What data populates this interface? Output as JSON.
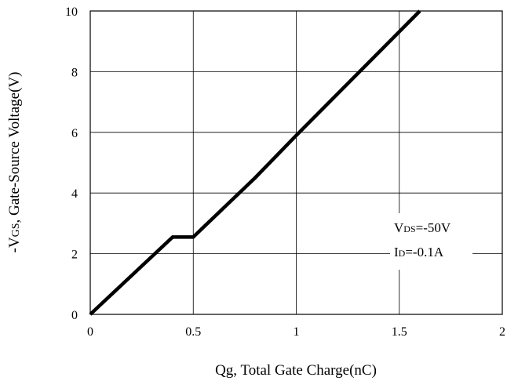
{
  "chart_data": {
    "type": "line",
    "xlabel": "Qg, Total Gate Charge(nC)",
    "ylabel_parts": {
      "pre": "-V",
      "sub": "GS",
      "post": ", Gate-Source Voltage(V)"
    },
    "xlim": [
      0,
      2
    ],
    "ylim": [
      0,
      10
    ],
    "xticks": [
      "0",
      "0.5",
      "1",
      "1.5",
      "2"
    ],
    "yticks": [
      "0",
      "2",
      "4",
      "6",
      "8",
      "10"
    ],
    "grid": true,
    "series": [
      {
        "x": [
          0,
          0.4,
          0.5,
          0.8,
          1.0,
          1.6
        ],
        "y": [
          0,
          2.55,
          2.55,
          4.5,
          5.9,
          10
        ]
      }
    ],
    "annotations": [
      {
        "pre": "V",
        "sub": "DS",
        "post": "=-50V"
      },
      {
        "pre": "I",
        "sub": "D",
        "post": "=-0.1A"
      }
    ]
  }
}
